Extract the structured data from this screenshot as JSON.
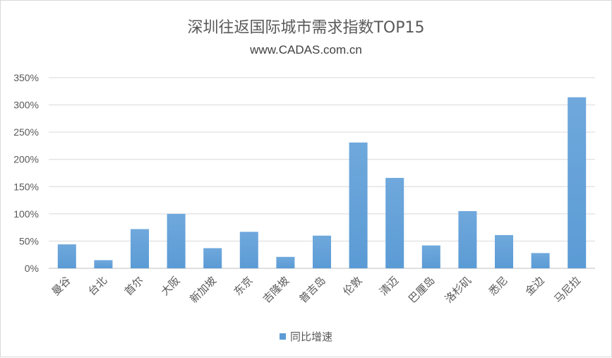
{
  "chart_data": {
    "type": "bar",
    "title": "深圳往返国际城市需求指数TOP15",
    "subtitle": "www.CADAS.com.cn",
    "categories": [
      "曼谷",
      "台北",
      "首尔",
      "大阪",
      "新加坡",
      "东京",
      "吉隆坡",
      "普吉岛",
      "伦敦",
      "清迈",
      "巴厘岛",
      "洛杉矶",
      "悉尼",
      "金边",
      "马尼拉"
    ],
    "series": [
      {
        "name": "同比增速",
        "values": [
          44,
          15,
          72,
          100,
          37,
          67,
          21,
          60,
          231,
          166,
          42,
          105,
          61,
          28,
          314
        ],
        "color": "#5b9bd5"
      }
    ],
    "ylim": [
      0,
      350
    ],
    "yticks": [
      "0%",
      "50%",
      "100%",
      "150%",
      "200%",
      "250%",
      "300%",
      "350%"
    ],
    "grid": true,
    "legend_position": "bottom"
  }
}
